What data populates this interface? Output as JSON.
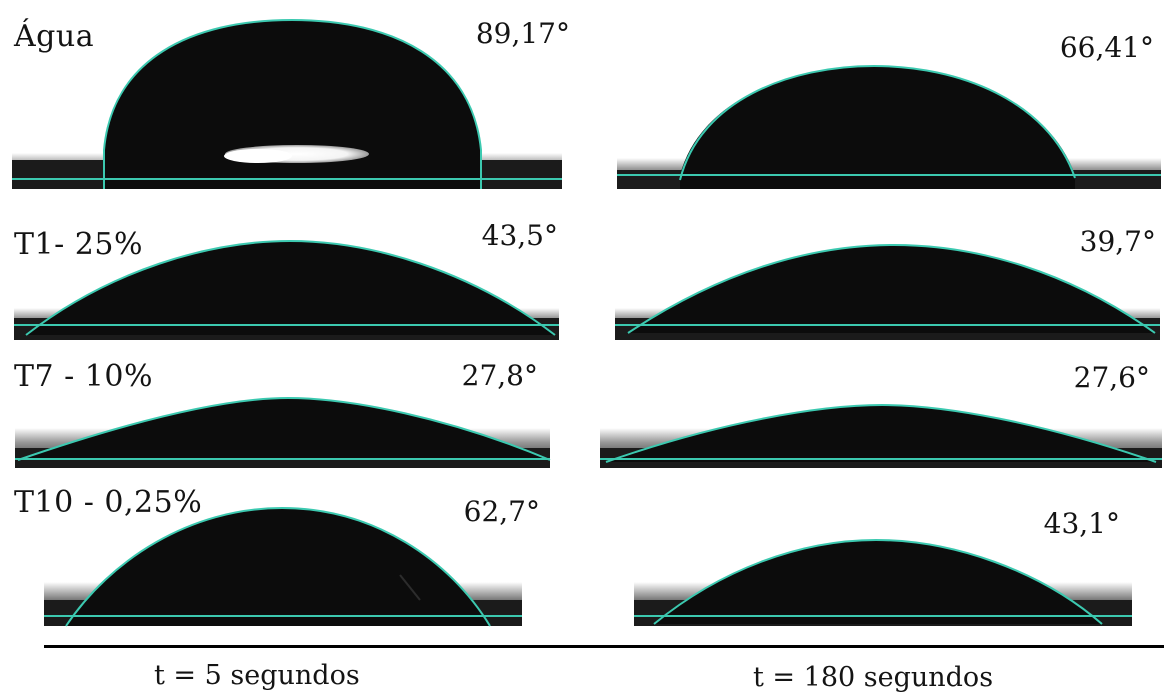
{
  "rows": [
    {
      "label": "Água",
      "angle_5s": "89,17°",
      "angle_180s": "66,41°"
    },
    {
      "label": "T1- 25%",
      "angle_5s": "43,5°",
      "angle_180s": "39,7°"
    },
    {
      "label": "T7 - 10%",
      "angle_5s": "27,8°",
      "angle_180s": "27,6°"
    },
    {
      "label": "T10 - 0,25%",
      "angle_5s": "62,7°",
      "angle_180s": "43,1°"
    }
  ],
  "footer": {
    "time_5s": "t = 5 segundos",
    "time_180s": "t = 180 segundos"
  },
  "colors": {
    "fit_line": "#3cc9b0",
    "drop": "#0c0c0c",
    "substrate": "#1a1a1a"
  }
}
